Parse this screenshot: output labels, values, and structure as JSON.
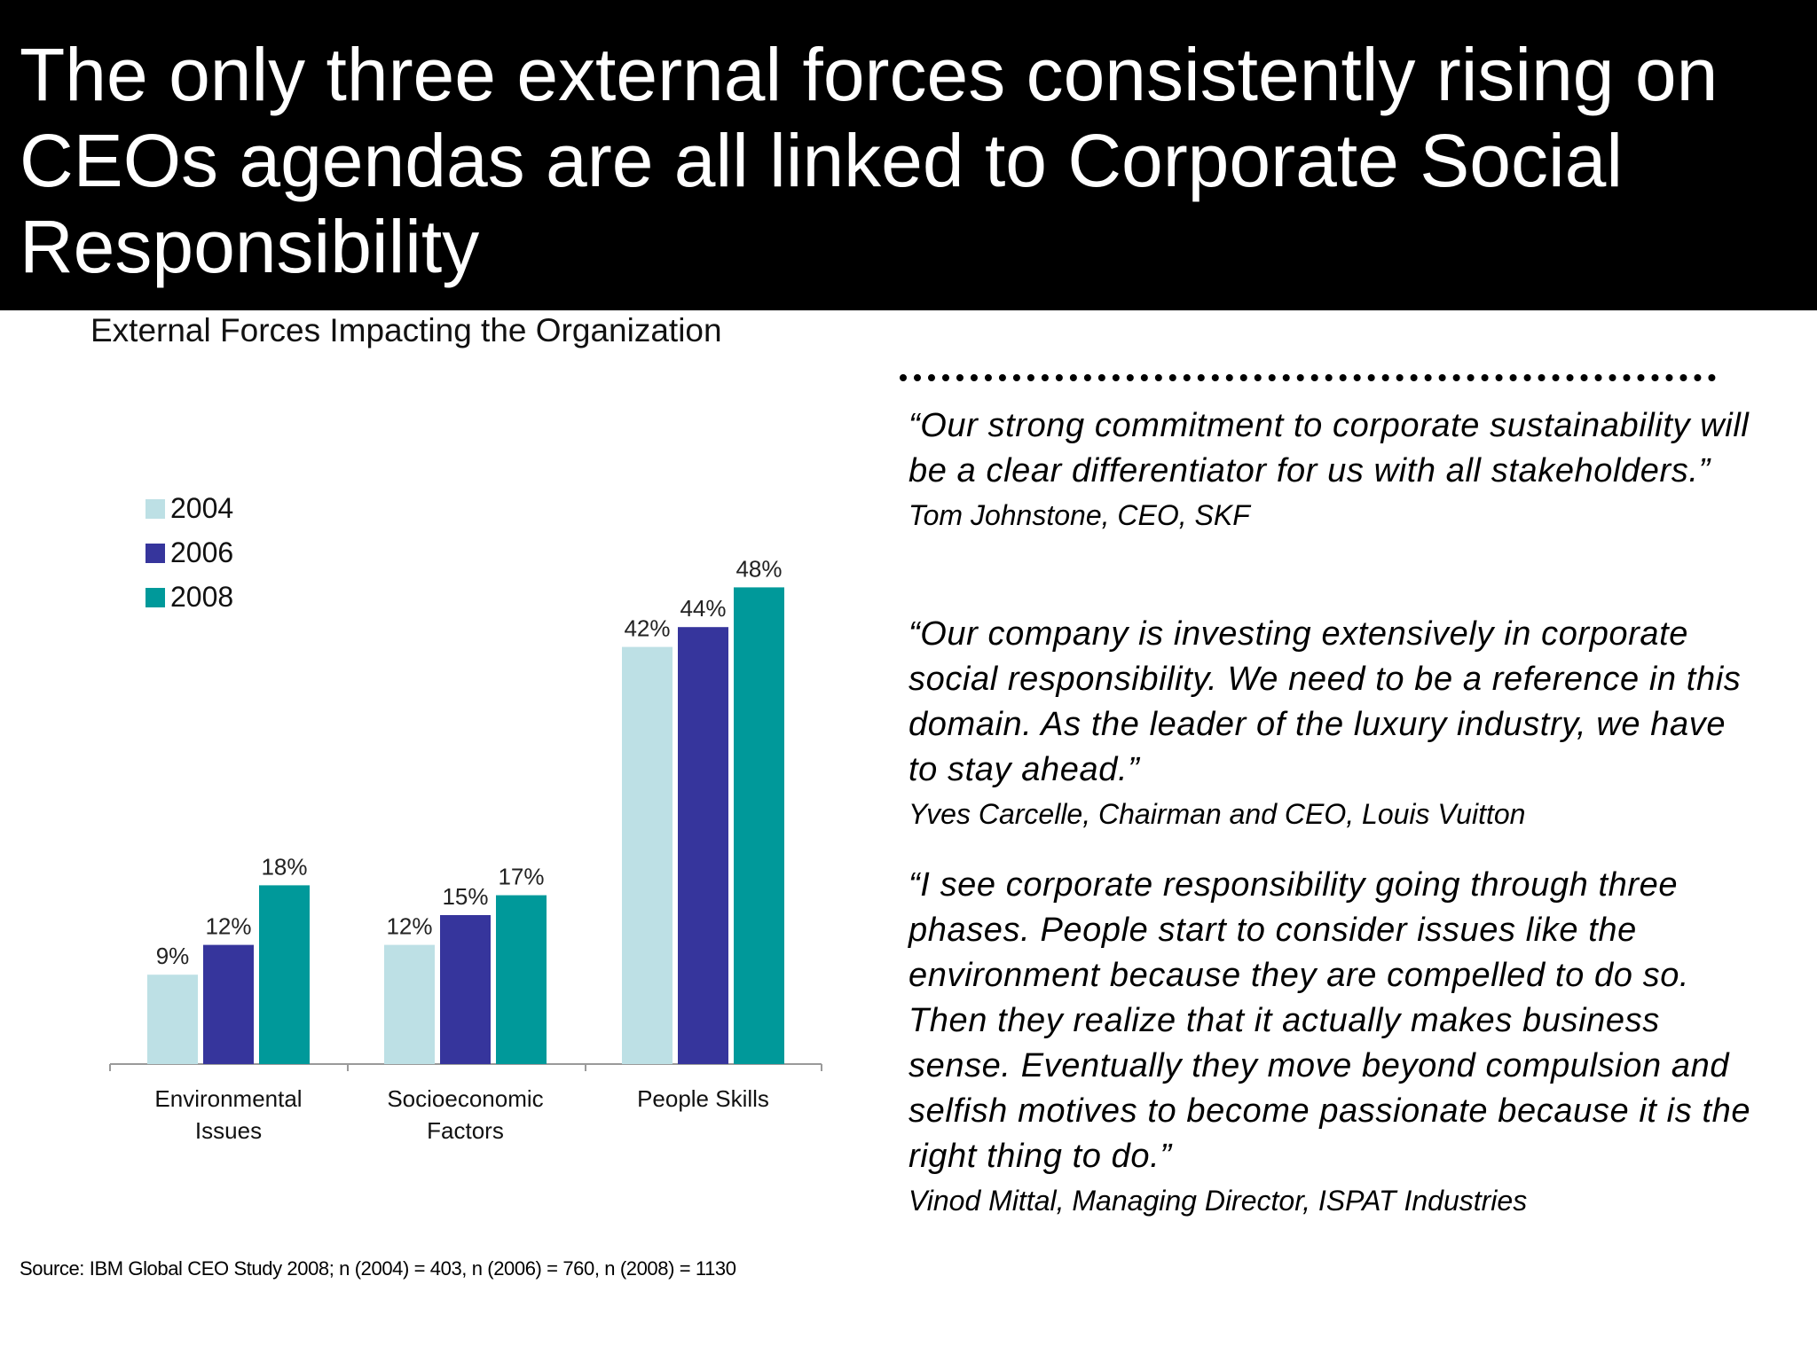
{
  "slide": {
    "title": "The only three external forces consistently rising on CEOs agendas are all linked to Corporate Social Responsibility",
    "source": "Source: IBM Global CEO Study 2008; n (2004) = 403, n (2006) = 760, n (2008) = 1130"
  },
  "chart_data": {
    "type": "bar",
    "title": "External Forces Impacting the Organization",
    "categories": [
      "Environmental\nIssues",
      "Socioeconomic\nFactors",
      "People Skills"
    ],
    "series": [
      {
        "name": "2004",
        "color": "#bde0e5",
        "values": [
          9,
          12,
          42
        ],
        "labels": [
          "9%",
          "12%",
          "42%"
        ]
      },
      {
        "name": "2006",
        "color": "#36359c",
        "values": [
          12,
          15,
          44
        ],
        "labels": [
          "12%",
          "15%",
          "44%"
        ]
      },
      {
        "name": "2008",
        "color": "#00999a",
        "values": [
          18,
          17,
          48
        ],
        "labels": [
          "18%",
          "17%",
          "48%"
        ]
      }
    ],
    "xlabel": "",
    "ylabel": "",
    "ylim": [
      0,
      50
    ],
    "grid": false,
    "legend_position": "top-left"
  },
  "quotes": [
    {
      "text": "“Our strong commitment to corporate sustainability will be a clear differentiator for us with all stakeholders.”",
      "attribution": "Tom Johnstone, CEO, SKF"
    },
    {
      "text": "“Our company is investing extensively in corporate social responsibility. We need to be a reference in this domain. As the leader of the luxury industry, we have to stay ahead.”",
      "attribution": "Yves Carcelle, Chairman and CEO, Louis Vuitton"
    },
    {
      "text": "“I see corporate responsibility going through three phases. People start to consider issues like the environment because they are compelled to do so. Then they realize that it actually makes business sense. Eventually they move beyond compulsion and selfish motives to become passionate because it is the right thing to do.”",
      "attribution": "Vinod Mittal, Managing Director, ISPAT Industries"
    }
  ]
}
